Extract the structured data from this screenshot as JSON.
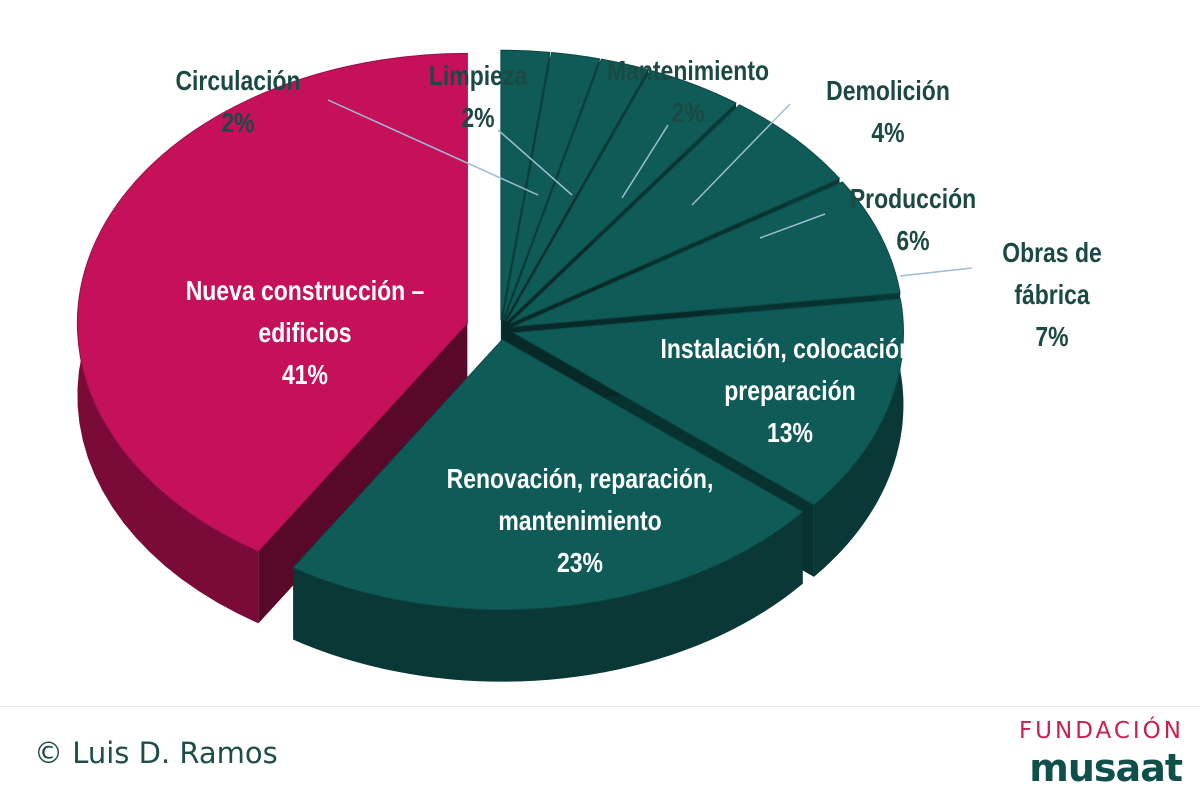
{
  "chart_data": {
    "type": "pie",
    "style": "3d-exploded",
    "title": "",
    "slices": [
      {
        "label": "Nueva construcción – edificios",
        "lines": [
          "Nueva construcción –",
          "edificios"
        ],
        "value": 41,
        "value_label": "41%",
        "color": "#c4115a"
      },
      {
        "label": "Renovación, reparación, mantenimiento",
        "lines": [
          "Renovación, reparación,",
          "mantenimiento"
        ],
        "value": 23,
        "value_label": "23%",
        "color": "#0f5b58"
      },
      {
        "label": "Instalación, colocación, preparación",
        "lines": [
          "Instalación, colocación,",
          "preparación"
        ],
        "value": 13,
        "value_label": "13%",
        "color": "#0f5b58"
      },
      {
        "label": "Obras de fábrica",
        "lines": [
          "Obras de",
          "fábrica"
        ],
        "value": 7,
        "value_label": "7%",
        "color": "#0f5b58"
      },
      {
        "label": "Producción",
        "lines": [
          "Producción"
        ],
        "value": 6,
        "value_label": "6%",
        "color": "#0f5b58"
      },
      {
        "label": "Demolición",
        "lines": [
          "Demolición"
        ],
        "value": 4,
        "value_label": "4%",
        "color": "#0f5b58"
      },
      {
        "label": "Mantenimiento",
        "lines": [
          "Mantenimiento"
        ],
        "value": 2,
        "value_label": "2%",
        "color": "#0f5b58"
      },
      {
        "label": "Limpieza",
        "lines": [
          "Limpieza"
        ],
        "value": 2,
        "value_label": "2%",
        "color": "#0f5b58"
      },
      {
        "label": "Circulación",
        "lines": [
          "Circulación"
        ],
        "value": 2,
        "value_label": "2%",
        "color": "#0f5b58"
      }
    ]
  },
  "footer": {
    "credit": "© Luis D. Ramos",
    "logo_top": "FUNDACIÓN",
    "logo_bottom": "musaat"
  }
}
